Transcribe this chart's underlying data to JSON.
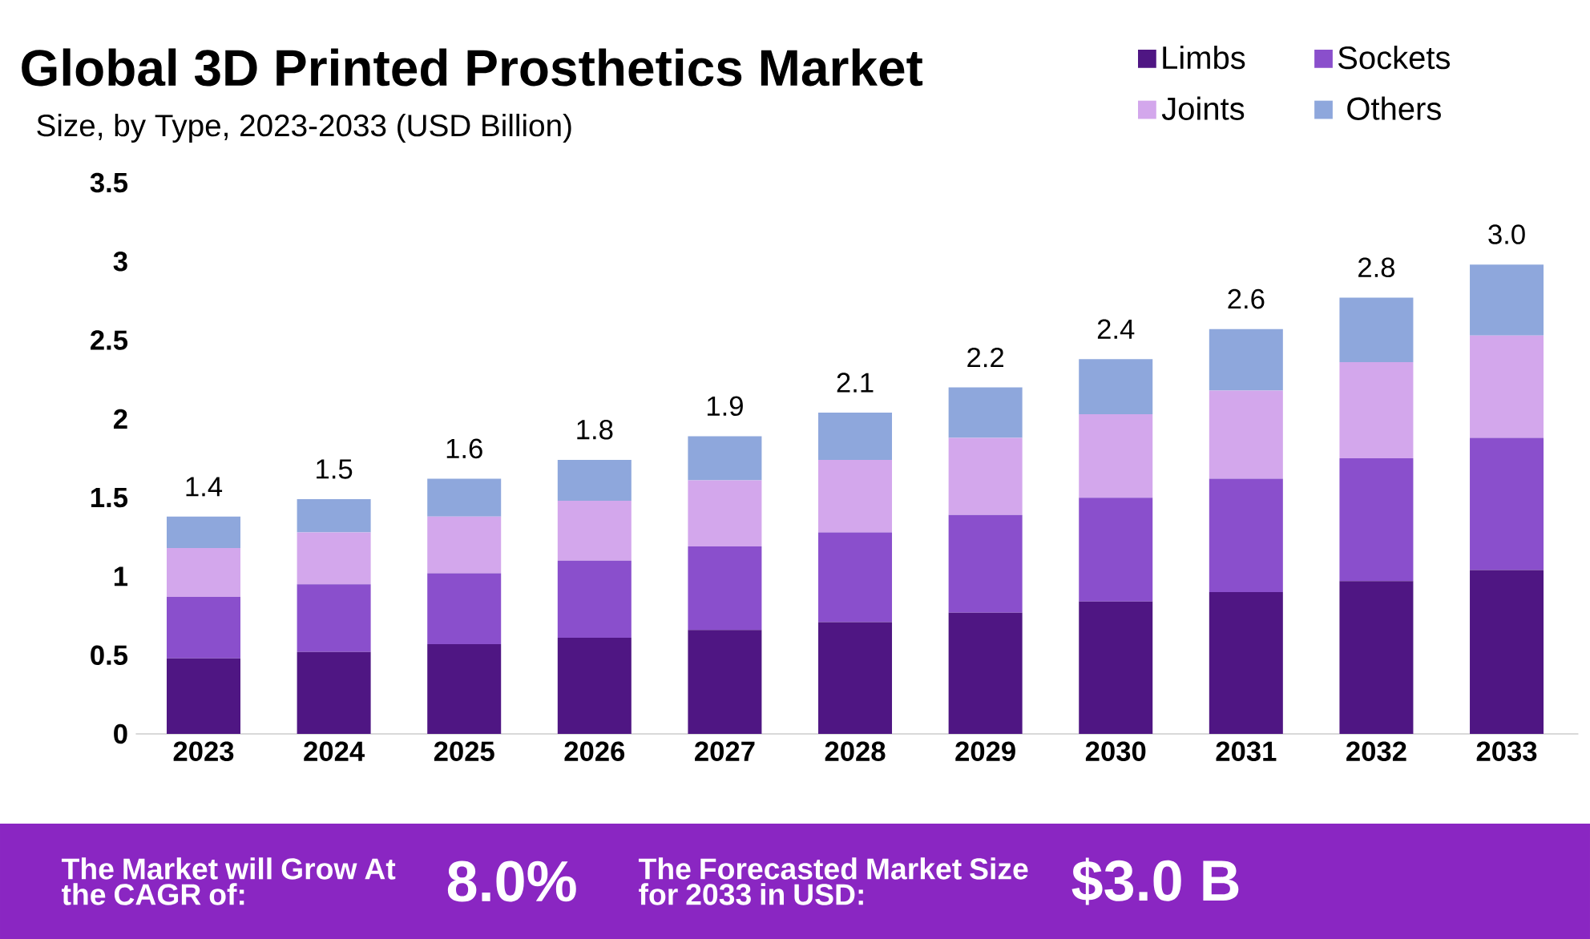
{
  "chart_data": {
    "type": "bar",
    "title": "Global 3D Printed Prosthetics Market",
    "subtitle": "Size, by Type, 2023-2033 (USD Billion)",
    "categories": [
      "2023",
      "2024",
      "2025",
      "2026",
      "2027",
      "2028",
      "2029",
      "2030",
      "2031",
      "2032",
      "2033"
    ],
    "stacked": true,
    "legend": "top right",
    "ylim": [
      0,
      3.5
    ],
    "yticks": [
      0,
      0.5,
      1,
      1.5,
      2,
      2.5,
      3,
      {
        "value": 3.5,
        "label": "3.5"
      }
    ],
    "series": [
      {
        "name": "Limbs",
        "color": "#4f1683",
        "values": [
          0.48,
          0.52,
          0.57,
          0.61,
          0.66,
          0.71,
          0.77,
          0.84,
          0.9,
          0.97,
          1.04
        ]
      },
      {
        "name": "Sockets",
        "color": "#8a4fcc",
        "values": [
          0.39,
          0.43,
          0.45,
          0.49,
          0.53,
          0.57,
          0.62,
          0.66,
          0.72,
          0.78,
          0.84
        ]
      },
      {
        "name": "Joints",
        "color": "#d3a7ec",
        "values": [
          0.31,
          0.33,
          0.36,
          0.38,
          0.42,
          0.46,
          0.49,
          0.53,
          0.56,
          0.61,
          0.65
        ]
      },
      {
        "name": "Others",
        "color": "#8ea7dc",
        "values": [
          0.2,
          0.21,
          0.24,
          0.26,
          0.28,
          0.3,
          0.32,
          0.35,
          0.39,
          0.41,
          0.45
        ]
      }
    ],
    "totals": [
      "1.4",
      "1.5",
      "1.6",
      "1.8",
      "1.9",
      "2.1",
      "2.2",
      "2.4",
      "2.6",
      "2.8",
      "3.0"
    ],
    "annotations": [
      "The Market will Grow At the CAGR of:",
      "8.0%",
      "The Forecasted Market Size for 2033 in USD:",
      "$3.0 B"
    ]
  }
}
